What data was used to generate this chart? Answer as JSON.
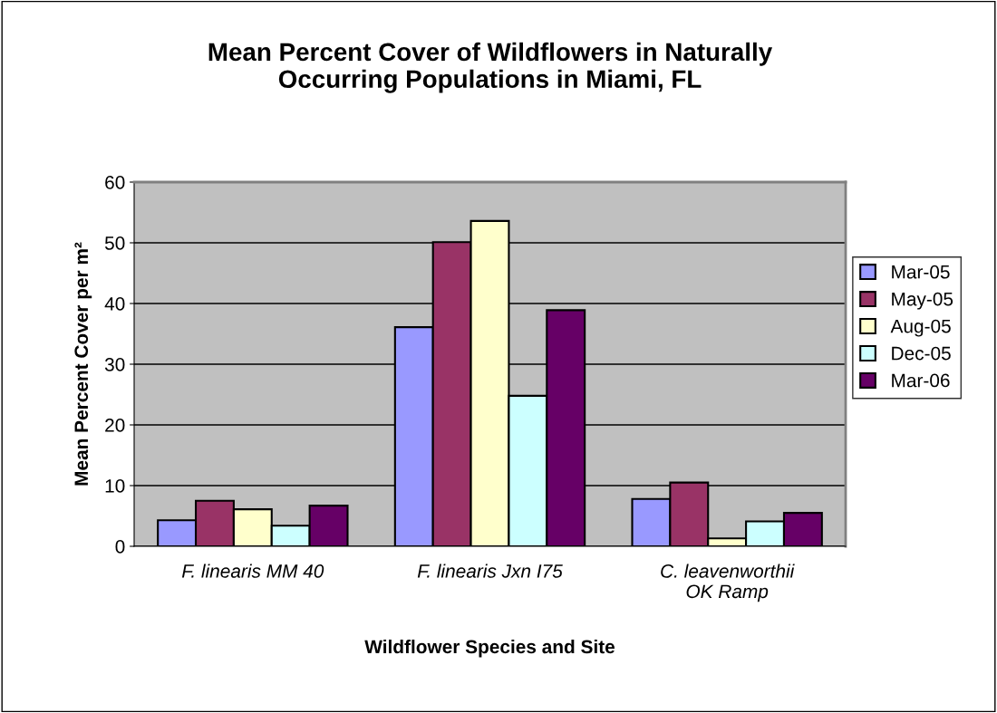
{
  "chart_data": {
    "type": "bar",
    "title": "Mean Percent Cover of Wildflowers in Naturally\nOccurring Populations in Miami, FL",
    "xlabel": "Wildflower Species and Site",
    "ylabel": "Mean Percent Cover per m²",
    "categories": [
      "F. linearis MM 40",
      "F. linearis Jxn I75",
      "C. leavenworthii\nOK Ramp"
    ],
    "series": [
      {
        "name": "Mar-05",
        "color": "#9999ff",
        "values": [
          4.3,
          36.1,
          7.8
        ]
      },
      {
        "name": "May-05",
        "color": "#993366",
        "values": [
          7.5,
          50.1,
          10.5
        ]
      },
      {
        "name": "Aug-05",
        "color": "#ffffcc",
        "values": [
          6.1,
          53.6,
          1.3
        ]
      },
      {
        "name": "Dec-05",
        "color": "#ccffff",
        "values": [
          3.4,
          24.8,
          4.1
        ]
      },
      {
        "name": "Mar-06",
        "color": "#660066",
        "values": [
          6.7,
          38.9,
          5.5
        ]
      }
    ],
    "ylim": [
      0,
      60
    ],
    "yticks": [
      0,
      10,
      20,
      30,
      40,
      50,
      60
    ],
    "grid": "y",
    "legend": "right"
  }
}
